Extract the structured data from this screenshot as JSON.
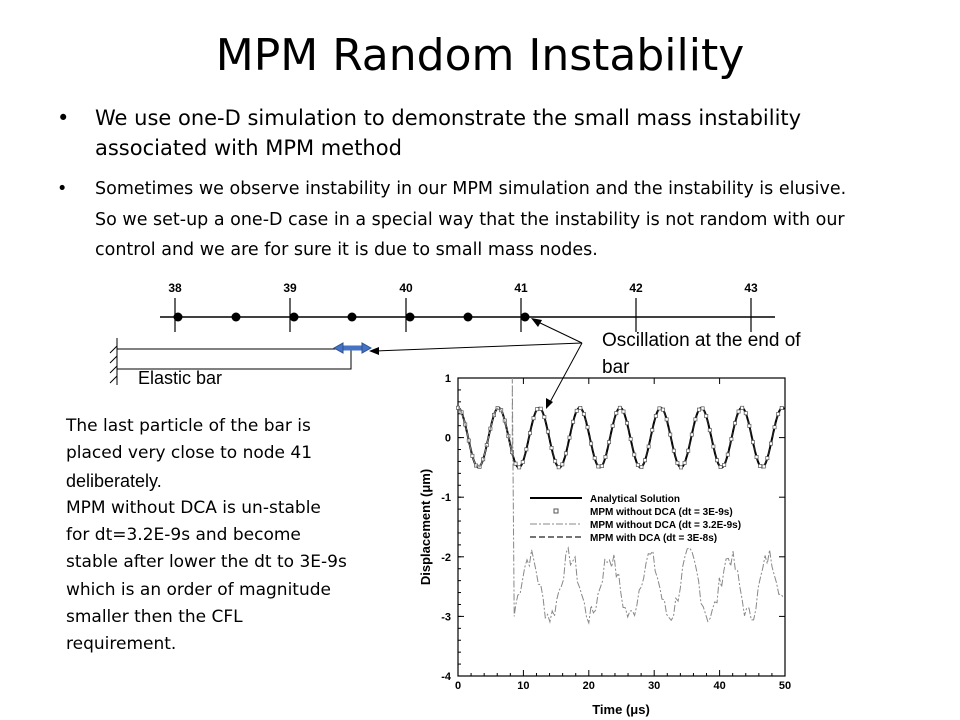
{
  "slide": {
    "title": "MPM Random Instability",
    "bullets": [
      "We use one-D simulation to demonstrate the small mass instability associated with MPM method",
      "Sometimes we observe instability in our MPM simulation and the instability is elusive. So we set-up a one-D case in a special way that the instability is not random with our control and we are for sure it is due to small mass nodes."
    ],
    "bullet_symbol": "•"
  },
  "diagram": {
    "node_labels": [
      "38",
      "39",
      "40",
      "41",
      "42",
      "43"
    ],
    "callout": "Oscillation at the end of  bar",
    "bar_label": "Elastic bar"
  },
  "description": {
    "line1": "The last particle of the bar is",
    "line2": "placed very close to node 41",
    "line3": "deliberately.",
    "line4": "MPM without DCA is un-stable",
    "line5": "for dt=3.2E-9s and become",
    "line6": "stable after lower the dt to 3E-9s",
    "line7": "which is an order of magnitude",
    "line8": "smaller then the CFL",
    "line9": "requirement."
  },
  "chart_data": {
    "type": "line",
    "xlabel": "Time (μs)",
    "ylabel": "Displacement (μm)",
    "xlim": [
      0,
      50
    ],
    "ylim": [
      -4,
      1
    ],
    "x_ticks": [
      "0",
      "10",
      "20",
      "30",
      "40",
      "50"
    ],
    "y_ticks": [
      "1",
      "0",
      "-1",
      "-2",
      "-3",
      "-4"
    ],
    "legend_position": "upper-right",
    "period_us": 6.2,
    "amplitude_um": 0.5,
    "offset_um": 0.0,
    "series": [
      {
        "name": "Analytical Solution",
        "style": "solid"
      },
      {
        "name": "MPM without DCA (dt = 3E-9s)",
        "style": "square-markers"
      },
      {
        "name": "MPM without DCA (dt = 3.2E-9s)",
        "style": "dash-dot-markers",
        "spike_at_us": 8.3,
        "unstable_mean_um": -2.5,
        "unstable_amplitude_um": 0.5
      },
      {
        "name": "MPM with DCA (dt = 3E-8s)",
        "style": "dashed"
      }
    ]
  }
}
